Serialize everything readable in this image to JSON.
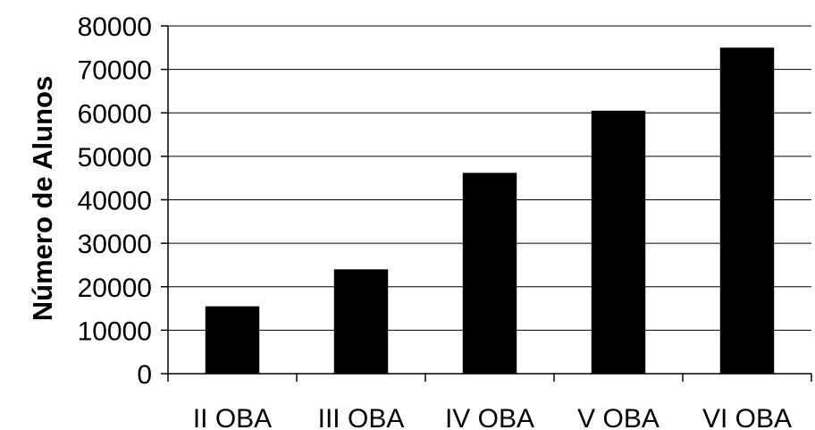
{
  "chart_data": {
    "type": "bar",
    "title": "",
    "xlabel": "",
    "ylabel": "Número de Alunos",
    "categories": [
      "II OBA",
      "III OBA",
      "IV OBA",
      "V OBA",
      "VI OBA"
    ],
    "values": [
      15500,
      24000,
      46200,
      60500,
      75000
    ],
    "ylim": [
      0,
      80000
    ],
    "yticks": [
      "0",
      "10000",
      "20000",
      "30000",
      "40000",
      "50000",
      "60000",
      "70000",
      "80000"
    ],
    "grid": true,
    "bar_color": "#000000",
    "grid_color": "#000000"
  }
}
